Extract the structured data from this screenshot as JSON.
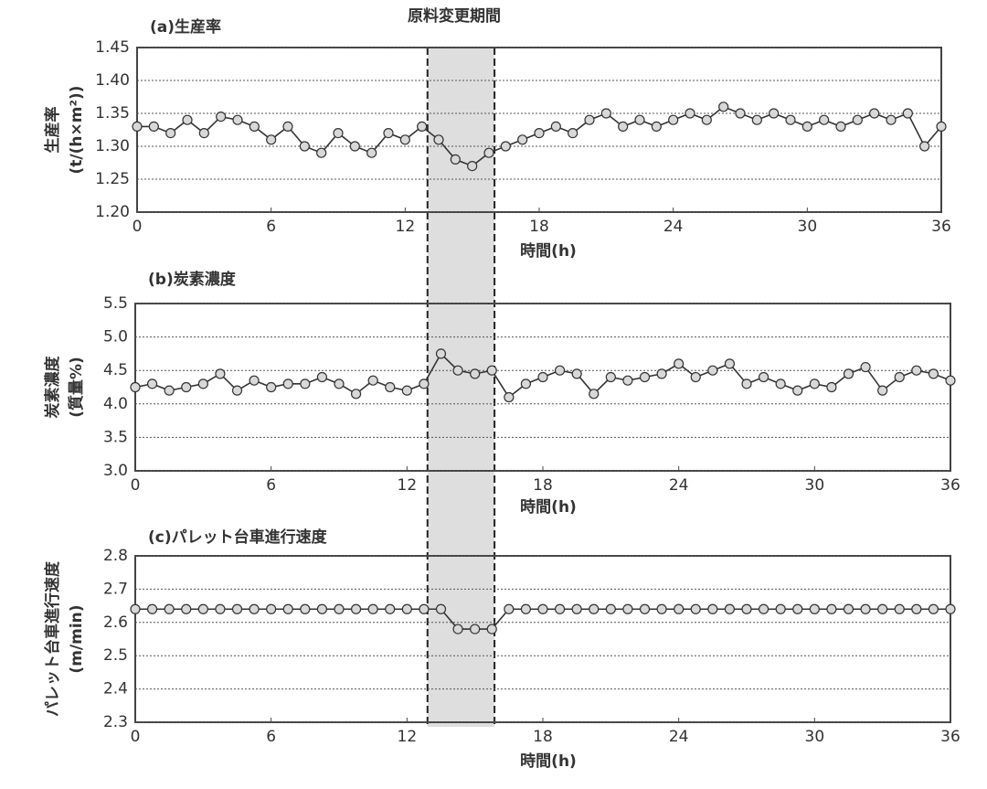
{
  "chart_data": [
    {
      "type": "line",
      "title": "(a)生産率",
      "annotation": "原料変更期間",
      "highlight": [
        13,
        16
      ],
      "ylabel": [
        "生産率",
        "(t/(h×m²))"
      ],
      "xlabel": "時間(h)",
      "xlim": [
        0,
        36
      ],
      "xticks": [
        0,
        6,
        12,
        18,
        24,
        30,
        36
      ],
      "ylim": [
        1.2,
        1.45
      ],
      "yticks": [
        {
          "value": 1.2,
          "label": "1.20"
        },
        1.25,
        {
          "value": 1.3,
          "label": "1.30"
        },
        1.35,
        {
          "value": 1.4,
          "label": "1.40"
        },
        1.45
      ],
      "grid": true,
      "series": [
        {
          "color": "#333333",
          "x": [
            0,
            0.75,
            1.5,
            2.25,
            3,
            3.75,
            4.5,
            5.25,
            6,
            6.75,
            7.5,
            8.25,
            9,
            9.75,
            10.5,
            11.25,
            12,
            12.75,
            13.5,
            14.25,
            15,
            15.75,
            16.5,
            17.25,
            18,
            18.75,
            19.5,
            20.25,
            21,
            21.75,
            22.5,
            23.25,
            24,
            24.75,
            25.5,
            26.25,
            27,
            27.75,
            28.5,
            29.25,
            30,
            30.75,
            31.5,
            32.25,
            33,
            33.75,
            34.5,
            35.25,
            36
          ],
          "values": [
            1.33,
            1.33,
            1.32,
            1.34,
            1.32,
            1.345,
            1.34,
            1.33,
            1.31,
            1.33,
            1.3,
            1.29,
            1.32,
            1.3,
            1.29,
            1.32,
            1.31,
            1.33,
            1.31,
            1.28,
            1.27,
            1.29,
            1.3,
            1.31,
            1.32,
            1.33,
            1.32,
            1.34,
            1.35,
            1.33,
            1.34,
            1.33,
            1.34,
            1.35,
            1.34,
            1.36,
            1.35,
            1.34,
            1.35,
            1.34,
            1.33,
            1.34,
            1.33,
            1.34,
            1.35,
            1.34,
            1.35,
            1.3,
            1.33
          ]
        }
      ]
    },
    {
      "type": "line",
      "title": "(b)炭素濃度",
      "ylabel": [
        "炭素濃度",
        "(質量%)"
      ],
      "xlabel": "時間(h)",
      "xlim": [
        0,
        36
      ],
      "xticks": [
        0,
        6,
        12,
        18,
        24,
        30,
        36
      ],
      "ylim": [
        3,
        5.5
      ],
      "yticks": [
        {
          "value": 3,
          "label": "3.0"
        },
        3.5,
        {
          "value": 4,
          "label": "4.0"
        },
        4.5,
        {
          "value": 5,
          "label": "5.0"
        },
        5.5
      ],
      "grid": true,
      "series": [
        {
          "color": "#333333",
          "x": [
            0,
            0.75,
            1.5,
            2.25,
            3,
            3.75,
            4.5,
            5.25,
            6,
            6.75,
            7.5,
            8.25,
            9,
            9.75,
            10.5,
            11.25,
            12,
            12.75,
            13.5,
            14.25,
            15,
            15.75,
            16.5,
            17.25,
            18,
            18.75,
            19.5,
            20.25,
            21,
            21.75,
            22.5,
            23.25,
            24,
            24.75,
            25.5,
            26.25,
            27,
            27.75,
            28.5,
            29.25,
            30,
            30.75,
            31.5,
            32.25,
            33,
            33.75,
            34.5,
            35.25,
            36
          ],
          "values": [
            4.25,
            4.3,
            4.2,
            4.25,
            4.3,
            4.45,
            4.2,
            4.35,
            4.25,
            4.3,
            4.3,
            4.4,
            4.3,
            4.15,
            4.35,
            4.25,
            4.2,
            4.3,
            4.75,
            4.5,
            4.45,
            4.5,
            4.1,
            4.3,
            4.4,
            4.5,
            4.45,
            4.15,
            4.4,
            4.35,
            4.4,
            4.45,
            4.6,
            4.4,
            4.5,
            4.6,
            4.3,
            4.4,
            4.3,
            4.2,
            4.3,
            4.25,
            4.45,
            4.55,
            4.2,
            4.4,
            4.5,
            4.45,
            4.35
          ]
        }
      ]
    },
    {
      "type": "line",
      "title": "(c)パレット台車進行速度",
      "ylabel": [
        "パレット台車進行速度",
        "(m/min)"
      ],
      "xlabel": "時間(h)",
      "xlim": [
        0,
        36
      ],
      "xticks": [
        0,
        6,
        12,
        18,
        24,
        30,
        36
      ],
      "ylim": [
        2.3,
        2.8
      ],
      "yticks": [
        2.3,
        2.4,
        2.5,
        2.6,
        2.7,
        2.8
      ],
      "grid": true,
      "series": [
        {
          "color": "#333333",
          "x": [
            0,
            0.75,
            1.5,
            2.25,
            3,
            3.75,
            4.5,
            5.25,
            6,
            6.75,
            7.5,
            8.25,
            9,
            9.75,
            10.5,
            11.25,
            12,
            12.75,
            13.5,
            14.25,
            15,
            15.75,
            16.5,
            17.25,
            18,
            18.75,
            19.5,
            20.25,
            21,
            21.75,
            22.5,
            23.25,
            24,
            24.75,
            25.5,
            26.25,
            27,
            27.75,
            28.5,
            29.25,
            30,
            30.75,
            31.5,
            32.25,
            33,
            33.75,
            34.5,
            35.25,
            36
          ],
          "values": [
            2.64,
            2.64,
            2.64,
            2.64,
            2.64,
            2.64,
            2.64,
            2.64,
            2.64,
            2.64,
            2.64,
            2.64,
            2.64,
            2.64,
            2.64,
            2.64,
            2.64,
            2.64,
            2.64,
            2.58,
            2.58,
            2.58,
            2.64,
            2.64,
            2.64,
            2.64,
            2.64,
            2.64,
            2.64,
            2.64,
            2.64,
            2.64,
            2.64,
            2.64,
            2.64,
            2.64,
            2.64,
            2.64,
            2.64,
            2.64,
            2.64,
            2.64,
            2.64,
            2.64,
            2.64,
            2.64,
            2.64,
            2.64,
            2.64
          ]
        }
      ]
    }
  ]
}
